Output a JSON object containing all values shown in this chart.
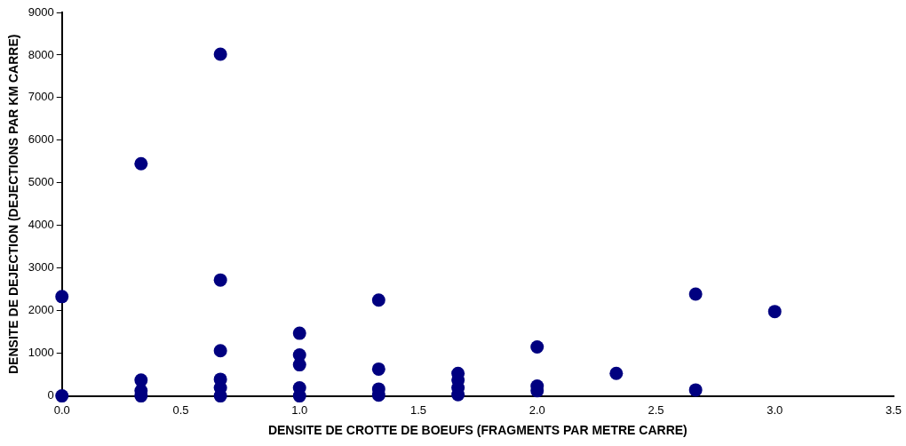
{
  "chart_data": {
    "type": "scatter",
    "xlabel": "DENSITE DE CROTTE DE BOEUFS (FRAGMENTS PAR METRE CARRE)",
    "ylabel": "DENSITE DE DEJECTION (DEJECTIONS PAR KM CARRE)",
    "x": [
      0,
      0,
      0.333,
      0.333,
      0.333,
      0.333,
      0.667,
      0.667,
      0.667,
      0.667,
      0.667,
      0.667,
      1,
      1,
      1,
      1,
      1,
      1.333,
      1.333,
      1.333,
      1.333,
      1.667,
      1.667,
      1.667,
      1.667,
      2,
      2,
      2,
      2.333,
      2.667,
      2.667,
      3
    ],
    "series": [
      {
        "color": "#000080",
        "values": [
          2330,
          0,
          5450,
          0,
          370,
          120,
          8020,
          2720,
          1060,
          390,
          190,
          0,
          1470,
          960,
          730,
          190,
          0,
          2250,
          630,
          160,
          20,
          530,
          370,
          190,
          30,
          1150,
          120,
          230,
          530,
          2390,
          140,
          1980
        ]
      }
    ],
    "xlim": [
      0,
      3.5
    ],
    "xticks": [
      {
        "value": 0,
        "label": "0.0"
      },
      {
        "value": 0.5,
        "label": "0.5"
      },
      {
        "value": 1,
        "label": "1.0"
      },
      {
        "value": 1.5,
        "label": "1.5"
      },
      {
        "value": 2,
        "label": "2.0"
      },
      {
        "value": 2.5,
        "label": "2.5"
      },
      {
        "value": 3,
        "label": "3.0"
      },
      {
        "value": 3.5,
        "label": "3.5"
      }
    ],
    "ylim": [
      0,
      9000
    ],
    "yticks": [
      0,
      1000,
      2000,
      3000,
      4000,
      5000,
      6000,
      7000,
      8000,
      9000
    ],
    "grid": false,
    "legend": false,
    "marker": "circle"
  }
}
